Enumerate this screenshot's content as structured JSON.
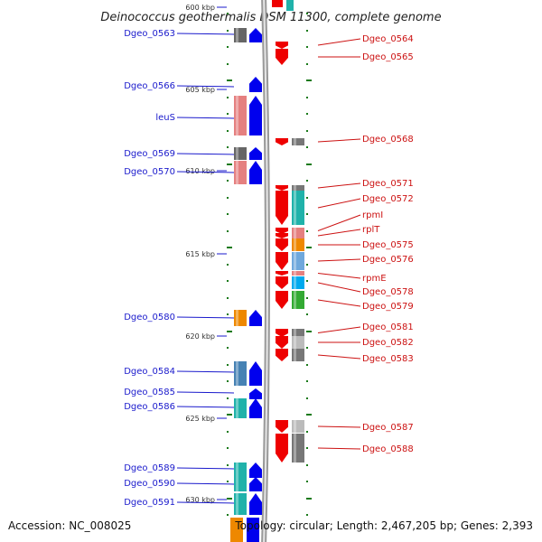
{
  "title": "Deinococcus geothermalis DSM 11300, complete genome",
  "footer": {
    "accession": "Accession: NC_008025",
    "topology": "Topology: circular; Length: 2,467,205 bp; Genes: 2,393"
  },
  "colors": {
    "forward_arrow": "#0000ee",
    "reverse_arrow": "#ee0000",
    "backbone": "#888888",
    "tick": "#1a7a1a",
    "left_label": "#1a1acc",
    "right_label": "#cc1111"
  },
  "ruler": [
    {
      "label": "600 kbp",
      "pos_kbp": 600
    },
    {
      "label": "605 kbp",
      "pos_kbp": 605
    },
    {
      "label": "610 kbp",
      "pos_kbp": 610
    },
    {
      "label": "615 kbp",
      "pos_kbp": 615
    },
    {
      "label": "620 kbp",
      "pos_kbp": 620
    },
    {
      "label": "625 kbp",
      "pos_kbp": 625
    },
    {
      "label": "630 kbp",
      "pos_kbp": 630
    }
  ],
  "forward_genes": [
    {
      "label": "Dgeo_0563",
      "color": "#666666"
    },
    {
      "label": "Dgeo_0566",
      "color": ""
    },
    {
      "label": "leuS",
      "color": "#e58080"
    },
    {
      "label": "Dgeo_0569",
      "color": "#666666"
    },
    {
      "label": "Dgeo_0570",
      "color": "#e58080"
    },
    {
      "label": "Dgeo_0580",
      "color": "#ee8800"
    },
    {
      "label": "Dgeo_0584",
      "color": "#4682b4"
    },
    {
      "label": "Dgeo_0585",
      "color": ""
    },
    {
      "label": "Dgeo_0586",
      "color": "#20b2aa"
    },
    {
      "label": "Dgeo_0589",
      "color": "#20b2aa"
    },
    {
      "label": "Dgeo_0590",
      "color": "#20b2aa"
    },
    {
      "label": "Dgeo_0591",
      "color": "#20b2aa"
    }
  ],
  "reverse_genes": [
    {
      "label": "Dgeo_0564",
      "color": ""
    },
    {
      "label": "Dgeo_0565",
      "color": ""
    },
    {
      "label": "Dgeo_0568",
      "color": "#777777"
    },
    {
      "label": "Dgeo_0571",
      "color": "#777777"
    },
    {
      "label": "Dgeo_0572",
      "color": "#20b2aa"
    },
    {
      "label": "rpmI",
      "color": "#e58080"
    },
    {
      "label": "rplT",
      "color": "#e58080"
    },
    {
      "label": "Dgeo_0575",
      "color": "#ee8800"
    },
    {
      "label": "Dgeo_0576",
      "color": "#6fa8dc"
    },
    {
      "label": "rpmE",
      "color": "#e58080"
    },
    {
      "label": "Dgeo_0578",
      "color": "#00aaee"
    },
    {
      "label": "Dgeo_0579",
      "color": "#33aa33"
    },
    {
      "label": "Dgeo_0581",
      "color": "#777777"
    },
    {
      "label": "Dgeo_0582",
      "color": "#bbbbbb"
    },
    {
      "label": "Dgeo_0583",
      "color": "#777777"
    },
    {
      "label": "Dgeo_0587",
      "color": "#bbbbbb"
    },
    {
      "label": "Dgeo_0588",
      "color": "#777777"
    }
  ]
}
